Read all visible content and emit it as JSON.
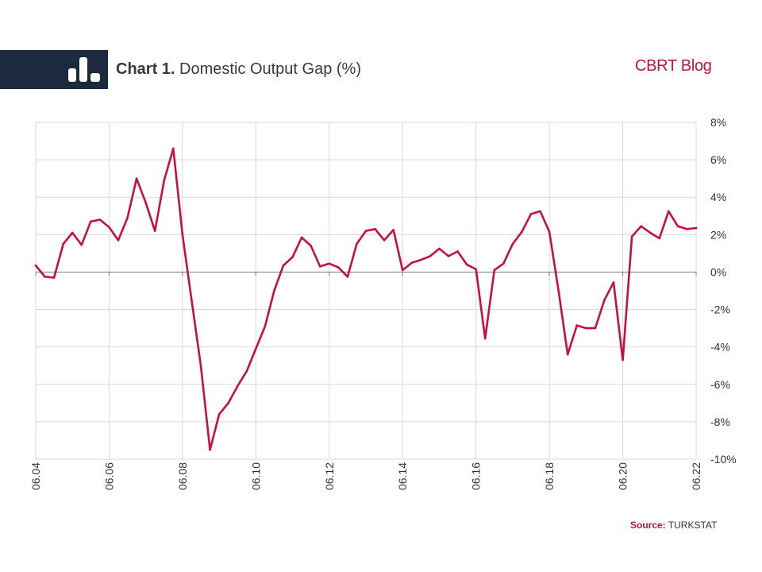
{
  "header": {
    "title_bold": "Chart 1.",
    "title_rest": "Domestic Output Gap (%)",
    "brand": "CBRT Blog"
  },
  "footer": {
    "source_label": "Source:",
    "source_value": "TURKSTAT"
  },
  "colors": {
    "line": "#c8103c",
    "banner": "#1c2a3d",
    "grid": "#d9d9d9",
    "zero_line": "#7f7f7f",
    "brand": "#c0143c"
  },
  "icons": {
    "banner_icon": "bar-chart-icon"
  },
  "chart_data": {
    "type": "line",
    "title": "Domestic Output Gap (%)",
    "xlabel": "",
    "ylabel": "",
    "ylim": [
      -10,
      8
    ],
    "y_ticks": [
      8,
      6,
      4,
      2,
      0,
      -2,
      -4,
      -6,
      -8,
      -10
    ],
    "y_tick_labels": [
      "8%",
      "6%",
      "4%",
      "2%",
      "0%",
      "-2%",
      "-4%",
      "-6%",
      "-8%",
      "-10%"
    ],
    "x_tick_labels": [
      "06.04",
      "06.06",
      "06.08",
      "06.10",
      "06.12",
      "06.14",
      "06.16",
      "06.18",
      "06.20",
      "06.22"
    ],
    "y_axis_position": "right",
    "grid": true,
    "x": [
      "2004-06",
      "2004-09",
      "2004-12",
      "2005-03",
      "2005-06",
      "2005-09",
      "2005-12",
      "2006-03",
      "2006-06",
      "2006-09",
      "2006-12",
      "2007-03",
      "2007-06",
      "2007-09",
      "2007-12",
      "2008-03",
      "2008-06",
      "2008-09",
      "2008-12",
      "2009-03",
      "2009-06",
      "2009-09",
      "2009-12",
      "2010-03",
      "2010-06",
      "2010-09",
      "2010-12",
      "2011-03",
      "2011-06",
      "2011-09",
      "2011-12",
      "2012-03",
      "2012-06",
      "2012-09",
      "2012-12",
      "2013-03",
      "2013-06",
      "2013-09",
      "2013-12",
      "2014-03",
      "2014-06",
      "2014-09",
      "2014-12",
      "2015-03",
      "2015-06",
      "2015-09",
      "2015-12",
      "2016-03",
      "2016-06",
      "2016-09",
      "2016-12",
      "2017-03",
      "2017-06",
      "2017-09",
      "2017-12",
      "2018-03",
      "2018-06",
      "2018-09",
      "2018-12",
      "2019-03",
      "2019-06",
      "2019-09",
      "2019-12",
      "2020-03",
      "2020-06",
      "2020-09",
      "2020-12",
      "2021-03",
      "2021-06",
      "2021-09",
      "2021-12",
      "2022-03",
      "2022-06"
    ],
    "series": [
      {
        "values": [
          0.35,
          -0.25,
          -0.3,
          1.5,
          2.1,
          1.45,
          2.7,
          2.8,
          2.4,
          1.7,
          2.9,
          5.0,
          3.7,
          2.2,
          4.9,
          6.6,
          2.0,
          -1.5,
          -5.0,
          -9.5,
          -7.6,
          -7.0,
          -6.1,
          -5.3,
          -4.1,
          -2.9,
          -1.0,
          0.35,
          0.8,
          1.85,
          1.4,
          0.3,
          0.45,
          0.25,
          -0.25,
          1.5,
          2.2,
          2.3,
          1.7,
          2.25,
          0.1,
          0.5,
          0.65,
          0.85,
          1.25,
          0.85,
          1.1,
          0.4,
          0.15,
          -3.55,
          0.1,
          0.45,
          1.5,
          2.15,
          3.1,
          3.25,
          2.15,
          -1.0,
          -4.4,
          -2.85,
          -3.0,
          -3.0,
          -1.5,
          -0.55,
          -4.7,
          1.9,
          2.45,
          2.1,
          1.8,
          3.25,
          2.45,
          2.3,
          2.35
        ]
      }
    ]
  }
}
